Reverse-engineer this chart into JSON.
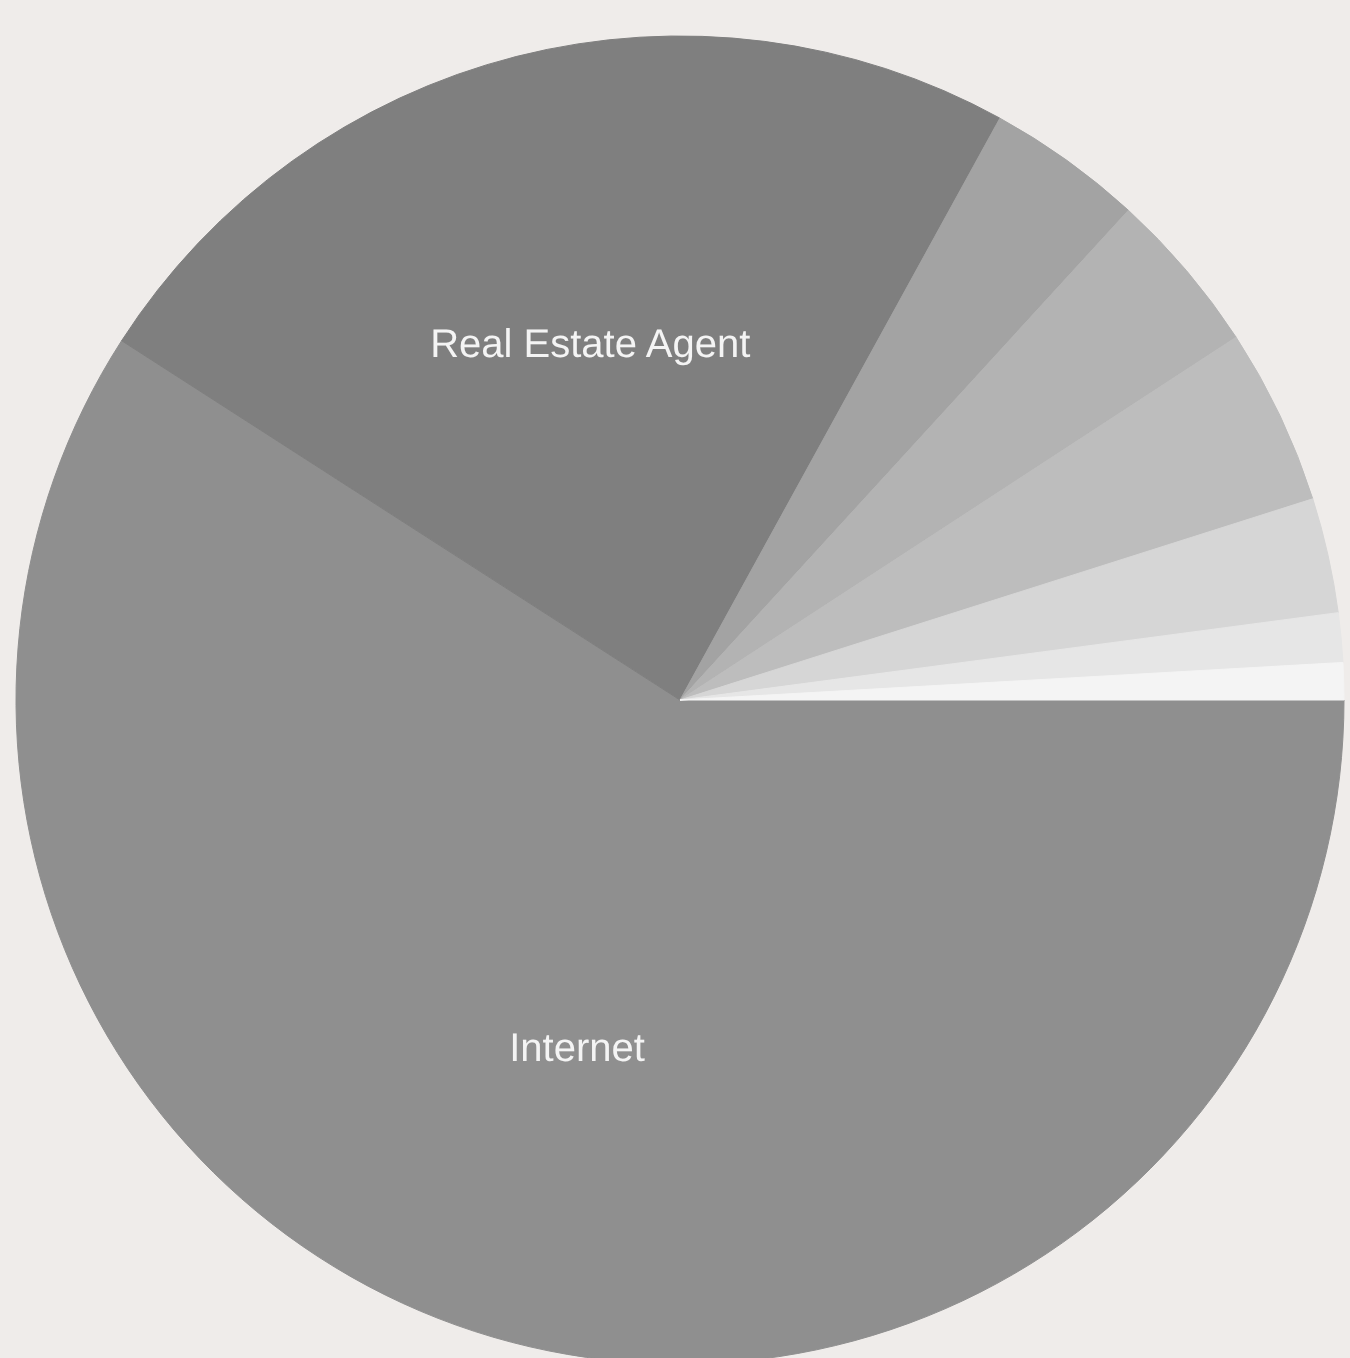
{
  "chart_data": {
    "type": "pie",
    "categories": [
      "Internet",
      "Real Estate Agent",
      null,
      null,
      null,
      null,
      null,
      null
    ],
    "values": [
      59.1,
      23.9,
      3.8,
      4.0,
      4.3,
      2.8,
      1.2,
      0.9
    ],
    "colors": [
      "#8f8f8f",
      "#7f7f7f",
      "#a3a3a3",
      "#b3b3b3",
      "#bdbdbd",
      "#d6d6d6",
      "#e6e6e6",
      "#f4f4f4"
    ]
  }
}
